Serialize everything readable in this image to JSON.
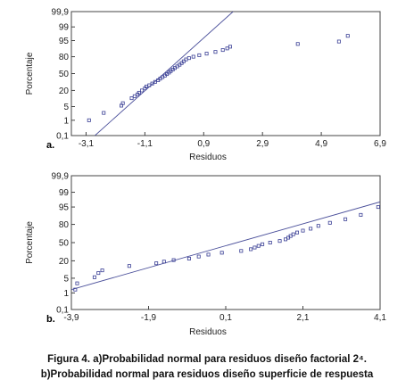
{
  "chart_data": [
    {
      "type": "scatter",
      "panel_label": "a.",
      "xlabel": "Residuos",
      "ylabel": "Porcentaje",
      "xlim": [
        -3.6,
        6.9
      ],
      "x_ticks": [
        -3.1,
        -1.1,
        0.9,
        2.9,
        4.9,
        6.9
      ],
      "x_tick_labels": [
        "-3,1",
        "-1,1",
        "0,9",
        "2,9",
        "4,9",
        "6,9"
      ],
      "y_scale": "normal-probability",
      "y_ticks": [
        0.1,
        1,
        5,
        20,
        50,
        80,
        95,
        99,
        99.9
      ],
      "y_tick_labels": [
        "0,1",
        "1",
        "5",
        "20",
        "50",
        "80",
        "95",
        "99",
        "99,9"
      ],
      "ylim": [
        0.1,
        99.9
      ],
      "reference_line": {
        "x": [
          -2.8,
          1.9
        ],
        "y": [
          0.1,
          99.9
        ]
      },
      "series": [
        {
          "x": [
            -3.0,
            -2.5,
            -1.9,
            -1.85,
            -1.55,
            -1.45,
            -1.35,
            -1.3,
            -1.2,
            -1.1,
            -1.05,
            -0.95,
            -0.85,
            -0.75,
            -0.65,
            -0.58,
            -0.5,
            -0.42,
            -0.35,
            -0.28,
            -0.22,
            -0.15,
            -0.08,
            0.0,
            0.08,
            0.15,
            0.22,
            0.3,
            0.4,
            0.55,
            0.75,
            1.0,
            1.3,
            1.55,
            1.7,
            1.8,
            4.1,
            5.5,
            5.8
          ],
          "y": [
            1.0,
            2.5,
            5.5,
            7.0,
            11,
            13,
            15,
            17,
            20,
            23,
            26,
            28,
            31,
            34,
            37,
            40,
            43,
            46,
            49,
            52,
            55,
            58,
            61,
            64,
            67,
            70,
            73,
            76,
            78,
            80,
            82,
            84,
            86,
            88,
            89.5,
            91,
            93,
            94.5,
            97
          ]
        }
      ]
    },
    {
      "type": "scatter",
      "panel_label": "b.",
      "xlabel": "Residuos",
      "ylabel": "Porcentaje",
      "xlim": [
        -3.9,
        4.1
      ],
      "x_ticks": [
        -3.9,
        -1.9,
        0.1,
        2.1,
        4.1
      ],
      "x_tick_labels": [
        "-3,9",
        "-1,9",
        "0,1",
        "2,1",
        "4,1"
      ],
      "y_scale": "normal-probability",
      "y_ticks": [
        0.1,
        1,
        5,
        20,
        50,
        80,
        95,
        99,
        99.9
      ],
      "y_tick_labels": [
        "0,1",
        "1",
        "5",
        "20",
        "50",
        "80",
        "95",
        "99",
        "99,9"
      ],
      "ylim": [
        0.1,
        99.9
      ],
      "reference_line": {
        "x": [
          -3.9,
          4.1
        ],
        "y": [
          1.5,
          97
        ]
      },
      "series": [
        {
          "x": [
            -3.8,
            -3.75,
            -3.3,
            -3.2,
            -3.1,
            -2.4,
            -1.7,
            -1.5,
            -1.25,
            -0.85,
            -0.6,
            -0.35,
            0.0,
            0.5,
            0.75,
            0.85,
            0.95,
            1.05,
            1.25,
            1.5,
            1.65,
            1.72,
            1.78,
            1.85,
            1.95,
            2.1,
            2.3,
            2.5,
            2.8,
            3.2,
            3.6,
            4.05
          ],
          "y": [
            1.5,
            3.0,
            5.5,
            8,
            10,
            14,
            17,
            19,
            21,
            23,
            26,
            29,
            32,
            35,
            38,
            41,
            44,
            47,
            50,
            53,
            56,
            59,
            62,
            65,
            68,
            71,
            74,
            78,
            82,
            86,
            90,
            95
          ]
        }
      ]
    }
  ],
  "captions": {
    "line1": "Figura 4. a)Probabilidad normal para residuos diseño factorial 2⁴.",
    "line2": "b)Probabilidad normal para residuos diseño superficie de respuesta"
  }
}
